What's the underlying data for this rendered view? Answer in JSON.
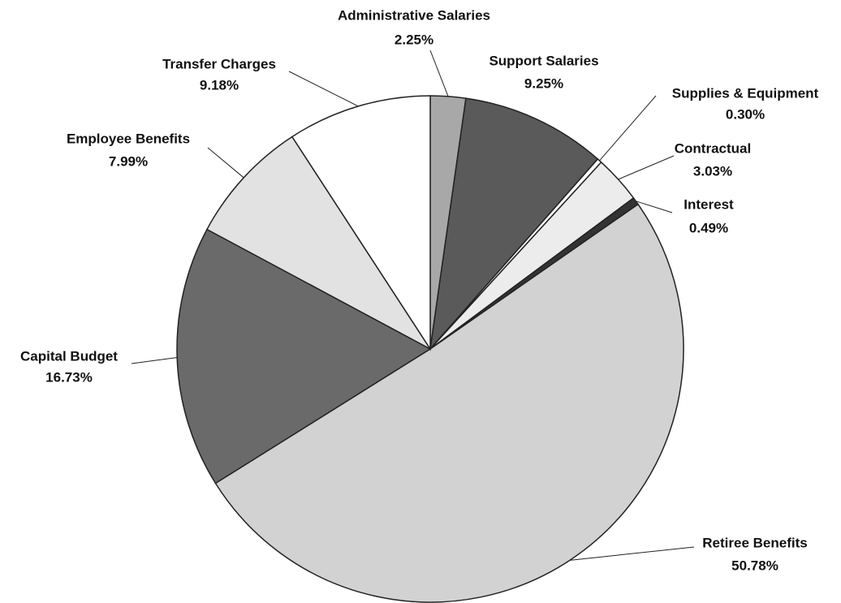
{
  "chart_data": {
    "type": "pie",
    "categories": [
      "Administrative Salaries",
      "Support Salaries",
      "Supplies & Equipment",
      "Contractual",
      "Interest",
      "Retiree Benefits",
      "Capital Budget",
      "Employee Benefits",
      "Transfer Charges"
    ],
    "values": [
      2.25,
      9.25,
      0.3,
      3.03,
      0.49,
      50.78,
      16.73,
      7.99,
      9.18
    ],
    "value_labels": [
      "2.25%",
      "9.25%",
      "0.30%",
      "3.03%",
      "0.49%",
      "50.78%",
      "16.73%",
      "7.99%",
      "9.18%"
    ],
    "colors": [
      "#a8a8a8",
      "#5a5a5a",
      "#ffffff",
      "#ececec",
      "#333333",
      "#d2d2d2",
      "#6a6a6a",
      "#e2e2e2",
      "#ffffff"
    ]
  }
}
